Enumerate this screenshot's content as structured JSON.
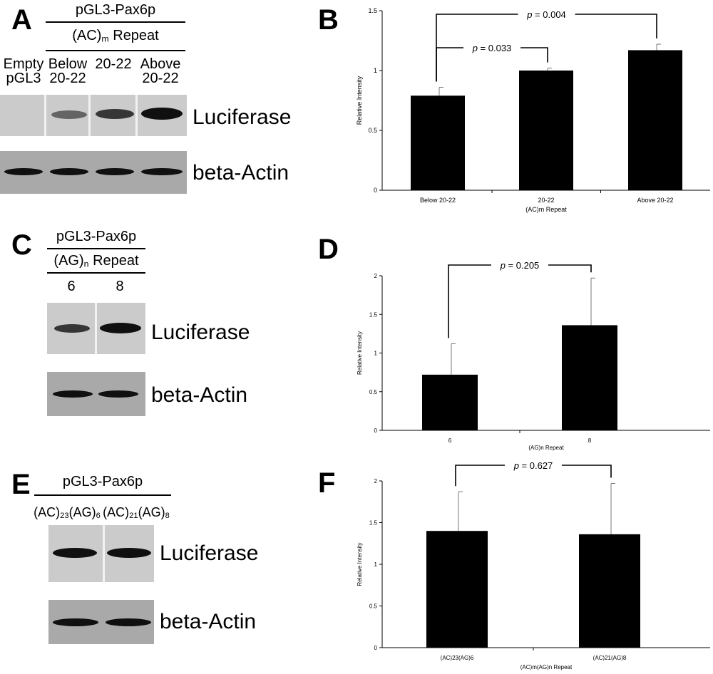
{
  "panels": {
    "A": {
      "letter": "A",
      "construct": "pGL3-Pax6p",
      "repeat_base": "(AC)",
      "repeat_sub": "m",
      "repeat_tail": " Repeat",
      "lanes": [
        {
          "line1": "Empty",
          "line2": "pGL3"
        },
        {
          "line1": "Below",
          "line2": "20-22"
        },
        {
          "line1": "",
          "line2": "20-22"
        },
        {
          "line1": "Above",
          "line2": "20-22"
        }
      ],
      "blot1_label": "Luciferase",
      "blot2_label": "beta-Actin"
    },
    "C": {
      "letter": "C",
      "construct": "pGL3-Pax6p",
      "repeat_base": "(AG)",
      "repeat_sub": "n",
      "repeat_tail": " Repeat",
      "lanes": [
        "6",
        "8"
      ],
      "blot1_label": "Luciferase",
      "blot2_label": "beta-Actin"
    },
    "E": {
      "letter": "E",
      "construct": "pGL3-Pax6p",
      "lane1": {
        "p1": "(AC)",
        "s1": "23",
        "p2": "(AG)",
        "s2": "6"
      },
      "lane2": {
        "p1": "(AC)",
        "s1": "21",
        "p2": "(AG)",
        "s2": "8"
      },
      "blot1_label": "Luciferase",
      "blot2_label": "beta-Actin"
    }
  },
  "chart_data": [
    {
      "panel": "B",
      "type": "bar",
      "categories": [
        "Below 20-22",
        "20-22",
        "Above 20-22"
      ],
      "values": [
        0.79,
        1.0,
        1.17
      ],
      "errors": [
        0.07,
        0.02,
        0.05
      ],
      "xlabel": "(AC)m Repeat",
      "ylabel": "Relative Intensity",
      "ylim": [
        0,
        1.5
      ],
      "yticks": [
        0,
        0.5,
        1,
        1.5
      ],
      "ytick_labels": [
        "0",
        "0.5",
        "1",
        "1.5"
      ],
      "bar_color": "#000000",
      "grid": false,
      "comparisons": [
        {
          "from": 0,
          "to": 2,
          "p_label": "p",
          "p_value": " = 0.004"
        },
        {
          "from": 0,
          "to": 1,
          "p_label": "p",
          "p_value": " = 0.033"
        }
      ]
    },
    {
      "panel": "D",
      "type": "bar",
      "categories": [
        "6",
        "8"
      ],
      "values": [
        0.72,
        1.36
      ],
      "errors": [
        0.4,
        0.61
      ],
      "xlabel": "(AG)n Repeat",
      "ylabel": "Relative Intensity",
      "ylim": [
        0,
        2
      ],
      "yticks": [
        0,
        0.5,
        1,
        1.5,
        2
      ],
      "ytick_labels": [
        "0",
        "0.5",
        "1",
        "1.5",
        "2"
      ],
      "bar_color": "#000000",
      "grid": false,
      "comparisons": [
        {
          "from": 0,
          "to": 1,
          "p_label": "p",
          "p_value": " = 0.205"
        }
      ]
    },
    {
      "panel": "F",
      "type": "bar",
      "categories": [
        "(AC)23(AG)6",
        "(AC)21(AG)8"
      ],
      "values": [
        1.4,
        1.36
      ],
      "errors": [
        0.47,
        0.61
      ],
      "xlabel": "(AC)m(AG)n Repeat",
      "ylabel": "Relative Intensity",
      "ylim": [
        0,
        2
      ],
      "yticks": [
        0,
        0.5,
        1,
        1.5,
        2
      ],
      "ytick_labels": [
        "0",
        "0.5",
        "1",
        "1.5",
        "2"
      ],
      "bar_color": "#000000",
      "grid": false,
      "comparisons": [
        {
          "from": 0,
          "to": 1,
          "p_label": "p",
          "p_value": " = 0.627"
        }
      ]
    }
  ],
  "chart_letters": [
    "B",
    "D",
    "F"
  ]
}
